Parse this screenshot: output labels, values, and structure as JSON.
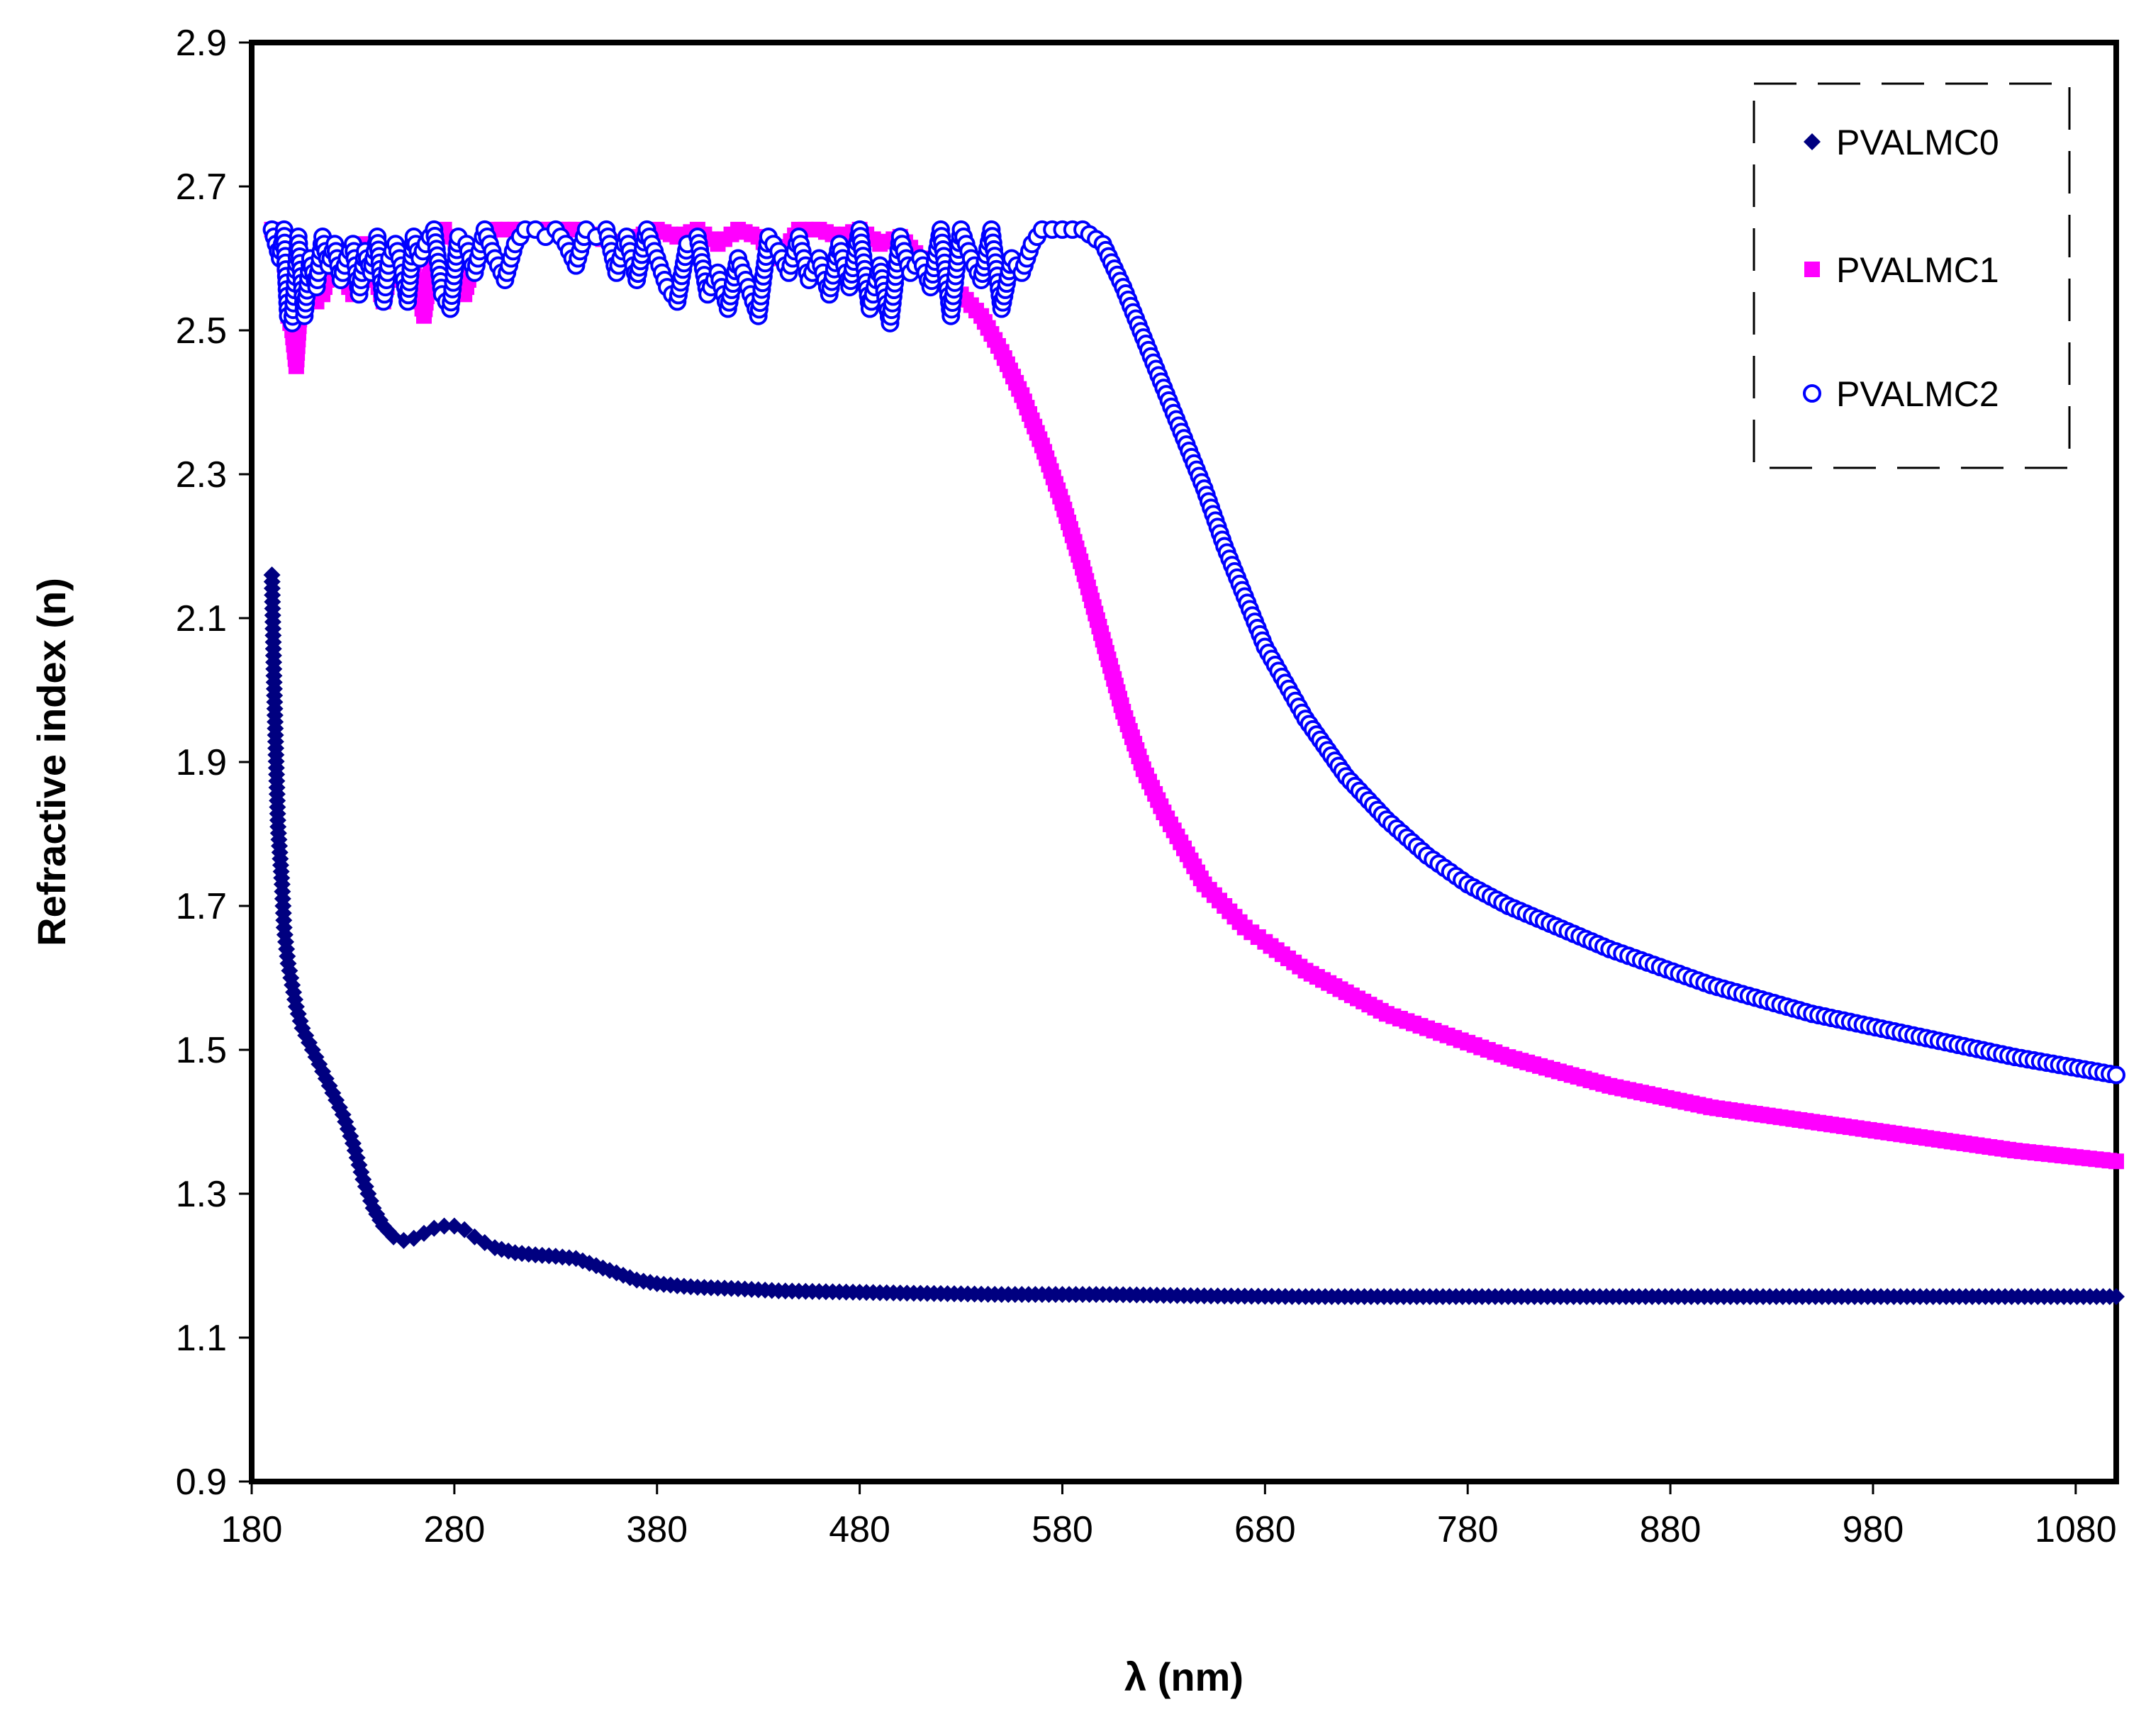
{
  "chart_data": {
    "type": "scatter",
    "title": "",
    "xlabel": "λ (nm)",
    "ylabel": "Refractive index (n)",
    "xlim": [
      180,
      1100
    ],
    "ylim": [
      0.9,
      2.9
    ],
    "xticks": [
      180,
      280,
      380,
      480,
      580,
      680,
      780,
      880,
      980,
      1080
    ],
    "yticks": [
      0.9,
      1.1,
      1.3,
      1.5,
      1.7,
      1.9,
      2.1,
      2.3,
      2.5,
      2.7,
      2.9
    ],
    "ytick_labels": [
      "0.9",
      "1.1",
      "1.3",
      "1.5",
      "1.7",
      "1.9",
      "2.1",
      "2.3",
      "2.5",
      "2.7",
      "2.9"
    ],
    "legend_position": "top-right",
    "series": [
      {
        "name": "PVALMC0",
        "marker": "diamond",
        "color": "#000080",
        "x": [
          190,
          191,
          192,
          193,
          195,
          196,
          198,
          200,
          202,
          205,
          210,
          215,
          220,
          225,
          230,
          235,
          240,
          245,
          250,
          255,
          260,
          265,
          270,
          275,
          280,
          285,
          290,
          295,
          300,
          310,
          320,
          330,
          340,
          350,
          360,
          370,
          380,
          390,
          400,
          420,
          440,
          460,
          480,
          500,
          550,
          600,
          650,
          700,
          800,
          900,
          1000,
          1100
        ],
        "y": [
          2.16,
          2.02,
          1.91,
          1.81,
          1.73,
          1.67,
          1.62,
          1.59,
          1.56,
          1.53,
          1.5,
          1.47,
          1.44,
          1.41,
          1.37,
          1.32,
          1.28,
          1.255,
          1.24,
          1.235,
          1.238,
          1.245,
          1.252,
          1.255,
          1.255,
          1.25,
          1.24,
          1.232,
          1.225,
          1.218,
          1.215,
          1.213,
          1.21,
          1.2,
          1.19,
          1.18,
          1.175,
          1.172,
          1.17,
          1.168,
          1.165,
          1.164,
          1.163,
          1.162,
          1.16,
          1.16,
          1.158,
          1.157,
          1.157,
          1.157,
          1.157,
          1.157
        ]
      },
      {
        "name": "PVALMC1",
        "marker": "square",
        "color": "#FF00FF",
        "x": [
          190,
          192,
          194,
          196,
          198,
          200,
          202,
          205,
          208,
          210,
          212,
          215,
          218,
          222,
          226,
          230,
          235,
          240,
          245,
          250,
          255,
          260,
          265,
          270,
          275,
          280,
          285,
          290,
          295,
          300,
          310,
          320,
          330,
          340,
          350,
          360,
          370,
          380,
          390,
          400,
          410,
          420,
          430,
          440,
          450,
          460,
          470,
          480,
          490,
          500,
          510,
          520,
          530,
          540,
          550,
          560,
          570,
          580,
          590,
          600,
          610,
          620,
          630,
          640,
          650,
          660,
          670,
          680,
          700,
          720,
          740,
          760,
          780,
          800,
          850,
          900,
          950,
          1000,
          1050,
          1100
        ],
        "y": [
          2.64,
          2.63,
          2.62,
          2.6,
          2.52,
          2.5,
          2.45,
          2.58,
          2.55,
          2.56,
          2.54,
          2.55,
          2.58,
          2.6,
          2.57,
          2.55,
          2.62,
          2.58,
          2.54,
          2.6,
          2.61,
          2.58,
          2.52,
          2.62,
          2.64,
          2.63,
          2.55,
          2.6,
          2.62,
          2.64,
          2.64,
          2.64,
          2.64,
          2.64,
          2.63,
          2.62,
          2.63,
          2.64,
          2.63,
          2.64,
          2.62,
          2.64,
          2.63,
          2.6,
          2.64,
          2.64,
          2.63,
          2.64,
          2.62,
          2.63,
          2.6,
          2.57,
          2.55,
          2.52,
          2.47,
          2.41,
          2.34,
          2.26,
          2.17,
          2.07,
          1.97,
          1.89,
          1.83,
          1.78,
          1.73,
          1.7,
          1.67,
          1.65,
          1.61,
          1.58,
          1.55,
          1.53,
          1.51,
          1.49,
          1.45,
          1.42,
          1.4,
          1.38,
          1.36,
          1.345
        ]
      },
      {
        "name": "PVALMC2",
        "marker": "circle-open",
        "color": "#0000FF",
        "x": [
          190,
          192,
          194,
          196,
          198,
          200,
          203,
          206,
          209,
          212,
          215,
          218,
          221,
          224,
          227,
          230,
          233,
          236,
          239,
          242,
          245,
          248,
          251,
          254,
          257,
          260,
          263,
          266,
          270,
          274,
          278,
          282,
          286,
          290,
          295,
          300,
          305,
          310,
          315,
          320,
          325,
          330,
          335,
          340,
          345,
          350,
          355,
          360,
          365,
          370,
          375,
          380,
          385,
          390,
          395,
          400,
          405,
          410,
          415,
          420,
          425,
          430,
          435,
          440,
          445,
          450,
          455,
          460,
          465,
          470,
          475,
          480,
          485,
          490,
          495,
          500,
          505,
          510,
          515,
          520,
          525,
          530,
          535,
          540,
          545,
          550,
          555,
          560,
          565,
          570,
          575,
          580,
          585,
          590,
          600,
          610,
          620,
          630,
          640,
          650,
          660,
          670,
          680,
          690,
          700,
          720,
          740,
          760,
          780,
          800,
          850,
          900,
          950,
          1000,
          1050,
          1100
        ],
        "y": [
          2.64,
          2.62,
          2.6,
          2.64,
          2.52,
          2.51,
          2.63,
          2.52,
          2.6,
          2.56,
          2.63,
          2.59,
          2.62,
          2.57,
          2.6,
          2.62,
          2.55,
          2.61,
          2.58,
          2.63,
          2.54,
          2.6,
          2.62,
          2.59,
          2.54,
          2.63,
          2.6,
          2.62,
          2.64,
          2.55,
          2.53,
          2.63,
          2.62,
          2.58,
          2.64,
          2.6,
          2.57,
          2.62,
          2.64,
          2.64,
          2.63,
          2.64,
          2.62,
          2.59,
          2.64,
          2.63,
          2.64,
          2.58,
          2.63,
          2.57,
          2.64,
          2.6,
          2.56,
          2.54,
          2.62,
          2.63,
          2.55,
          2.58,
          2.53,
          2.6,
          2.56,
          2.52,
          2.63,
          2.61,
          2.58,
          2.63,
          2.57,
          2.6,
          2.55,
          2.62,
          2.56,
          2.64,
          2.53,
          2.59,
          2.51,
          2.63,
          2.58,
          2.6,
          2.56,
          2.64,
          2.52,
          2.64,
          2.6,
          2.57,
          2.64,
          2.53,
          2.6,
          2.58,
          2.62,
          2.64,
          2.64,
          2.64,
          2.64,
          2.64,
          2.62,
          2.56,
          2.49,
          2.42,
          2.35,
          2.28,
          2.2,
          2.13,
          2.06,
          2.01,
          1.96,
          1.88,
          1.82,
          1.77,
          1.73,
          1.7,
          1.64,
          1.59,
          1.55,
          1.52,
          1.49,
          1.465
        ]
      }
    ]
  }
}
